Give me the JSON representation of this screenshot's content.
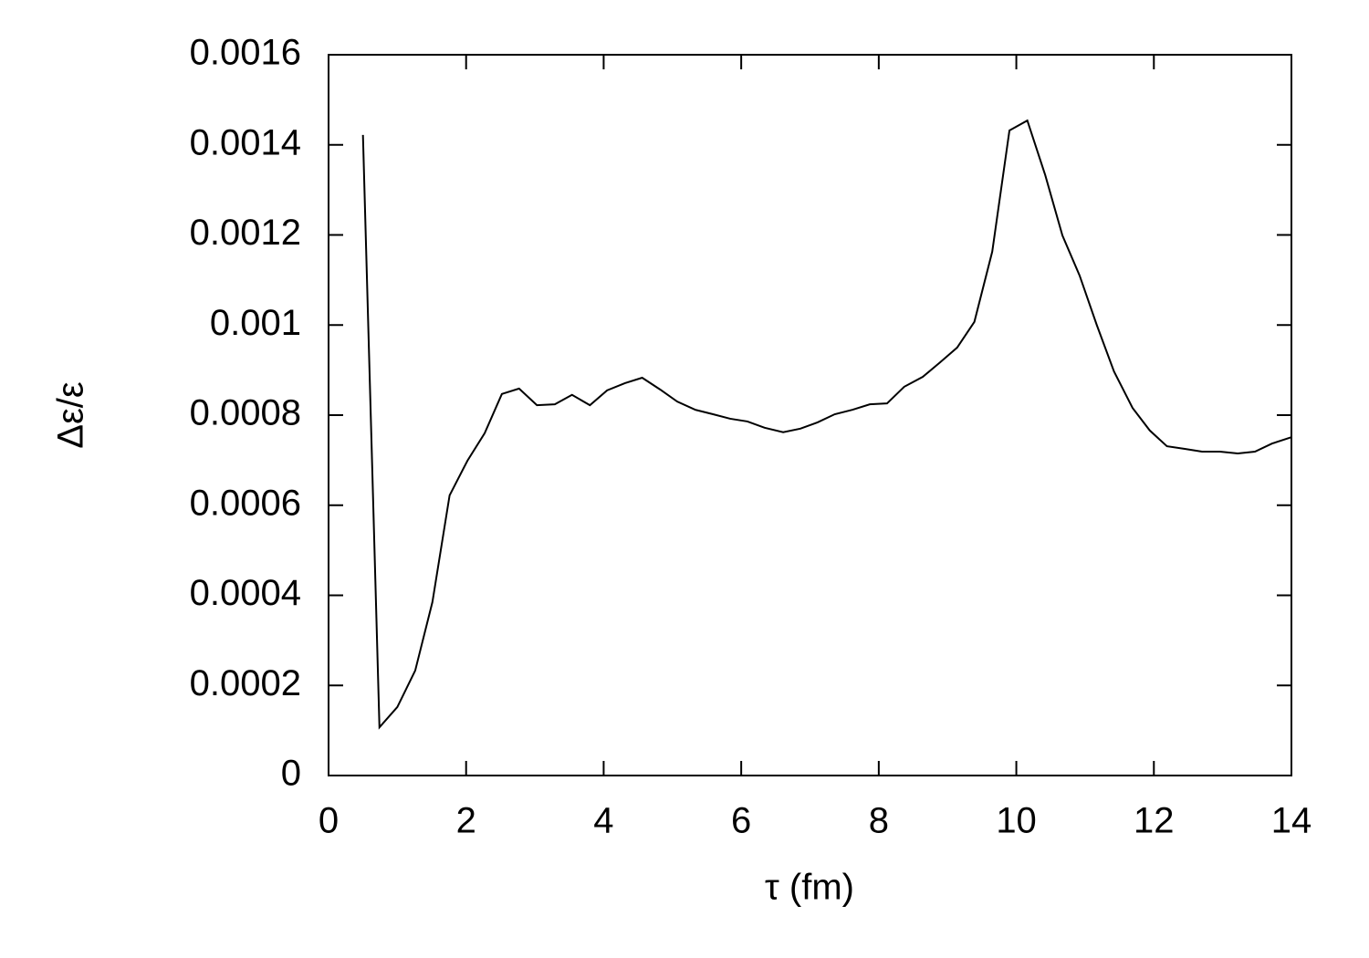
{
  "chart_data": {
    "type": "line",
    "xlabel": "τ (fm)",
    "ylabel": "Δε/ε",
    "xlim": [
      0,
      14
    ],
    "xticks": [
      0,
      2,
      4,
      6,
      8,
      10,
      12,
      14
    ],
    "ylim": [
      0,
      0.0016
    ],
    "yticks": [
      0,
      0.0002,
      0.0004,
      0.0006,
      0.0008,
      0.001,
      0.0012,
      0.0014,
      0.0016
    ],
    "grid": false,
    "color": "#000000",
    "x": [
      0.5,
      0.74,
      1.0,
      1.26,
      1.51,
      1.76,
      2.02,
      2.27,
      2.52,
      2.77,
      3.03,
      3.29,
      3.54,
      3.8,
      4.05,
      4.31,
      4.56,
      4.82,
      5.07,
      5.33,
      5.59,
      5.84,
      6.09,
      6.34,
      6.61,
      6.86,
      7.11,
      7.36,
      7.62,
      7.87,
      8.12,
      8.37,
      8.64,
      8.89,
      9.14,
      9.39,
      9.65,
      9.9,
      10.16,
      10.42,
      10.67,
      10.92,
      11.17,
      11.42,
      11.69,
      11.94,
      12.19,
      12.45,
      12.7,
      12.96,
      13.22,
      13.47,
      13.72,
      14.0
    ],
    "values": [
      0.001422,
      0.000107,
      0.000152,
      0.000233,
      0.000385,
      0.000622,
      0.000699,
      0.00076,
      0.000847,
      0.000859,
      0.000822,
      0.000824,
      0.000845,
      0.000822,
      0.000855,
      0.000871,
      0.000883,
      0.000857,
      0.00083,
      0.000812,
      0.000802,
      0.000792,
      0.000786,
      0.000772,
      0.000762,
      0.00077,
      0.000784,
      0.000802,
      0.000812,
      0.000824,
      0.000826,
      0.000863,
      0.000885,
      0.000917,
      0.00095,
      0.001007,
      0.001163,
      0.001432,
      0.001454,
      0.001333,
      0.001199,
      0.00111,
      0.001,
      0.000897,
      0.000816,
      0.000766,
      0.000731,
      0.000725,
      0.000719,
      0.000719,
      0.000715,
      0.000719,
      0.000737,
      0.000751
    ]
  }
}
